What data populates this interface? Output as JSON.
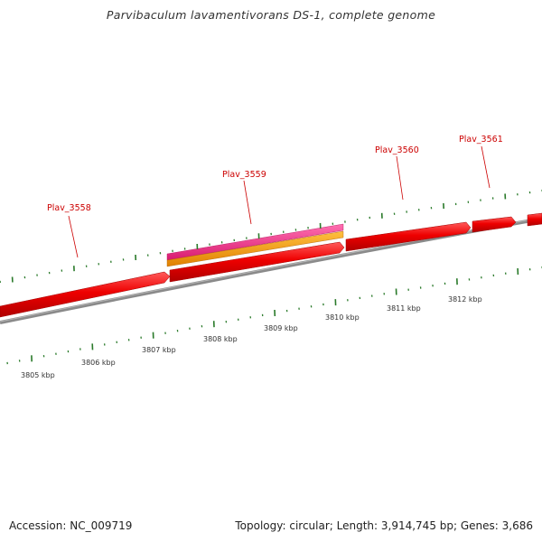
{
  "title": "Parvibaculum lavamentivorans DS-1, complete genome",
  "footer": {
    "accession": "Accession: NC_009719",
    "summary": "Topology: circular; Length: 3,914,745 bp; Genes: 3,686"
  },
  "colors": {
    "gene": "#ee0000",
    "gene_label": "#cc0000",
    "cds_feature": "#f0307a",
    "misc_feature": "#f5a000",
    "backbone": "#8a8a8a",
    "tick": "#2a7a2a"
  },
  "gene_labels": [
    {
      "name": "Plav_3558"
    },
    {
      "name": "Plav_3559"
    },
    {
      "name": "Plav_3560"
    },
    {
      "name": "Plav_3561"
    }
  ],
  "position_labels": [
    "3805 kbp",
    "3806 kbp",
    "3807 kbp",
    "3808 kbp",
    "3809 kbp",
    "3810 kbp",
    "3811 kbp",
    "3812 kbp"
  ]
}
